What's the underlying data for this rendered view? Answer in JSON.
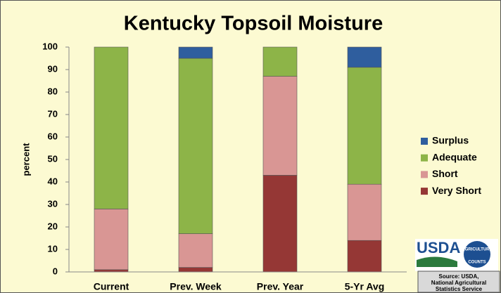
{
  "chart_data": {
    "type": "stacked_bar",
    "title": "Kentucky Topsoil Moisture",
    "y_label": "percent",
    "categories": [
      "Current",
      "Prev. Week",
      "Prev. Year",
      "5-Yr Avg"
    ],
    "series": [
      {
        "name": "Very Short",
        "color": "#953735",
        "values": [
          1,
          2,
          43,
          14
        ]
      },
      {
        "name": "Short",
        "color": "#d99694",
        "values": [
          27,
          15,
          44,
          25
        ]
      },
      {
        "name": "Adequate",
        "color": "#8db448",
        "values": [
          72,
          78,
          13,
          52
        ]
      },
      {
        "name": "Surplus",
        "color": "#2f5e9e",
        "values": [
          0,
          5,
          0,
          9
        ]
      }
    ],
    "ylim": [
      0,
      100
    ],
    "yticks": [
      0,
      10,
      20,
      30,
      40,
      50,
      60,
      70,
      80,
      90,
      100
    ],
    "grid": false,
    "legend": "right",
    "logo": {
      "name": "USDA",
      "tagline": [
        "AGRICULTURE",
        "COUNTS"
      ]
    },
    "source": [
      "Source: USDA,",
      "National Agricultural",
      "Statistics Service"
    ]
  }
}
